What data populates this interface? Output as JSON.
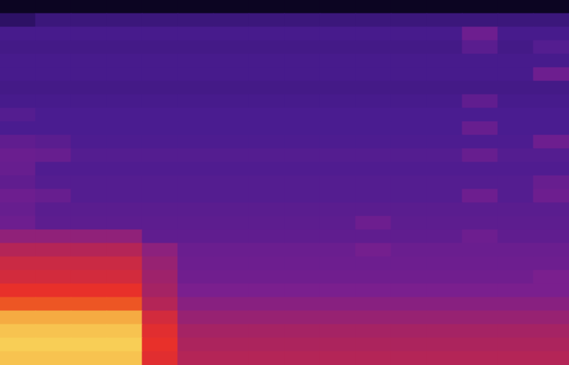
{
  "chart_data": {
    "type": "heatmap",
    "tick_labels": false,
    "grid": false,
    "xlim": [
      0,
      16
    ],
    "ylim": [
      0,
      27
    ],
    "zlim": [
      0,
      100
    ],
    "cells": [
      [
        8,
        8,
        8,
        8,
        8,
        8,
        8,
        8,
        8,
        8,
        8,
        8,
        8,
        8,
        8,
        8
      ],
      [
        25,
        30,
        30,
        30,
        30,
        30,
        30,
        30,
        30,
        30,
        30,
        30,
        30,
        30,
        30,
        30
      ],
      [
        34,
        34,
        34,
        34,
        34,
        34,
        34,
        34,
        34,
        34,
        34,
        34,
        34,
        46,
        34,
        34
      ],
      [
        33,
        33,
        33,
        33,
        33,
        33,
        33,
        33,
        33,
        33,
        33,
        33,
        33,
        40,
        33,
        38
      ],
      [
        34,
        34,
        34,
        34,
        34,
        34,
        34,
        34,
        34,
        34,
        34,
        34,
        34,
        34,
        34,
        34
      ],
      [
        34,
        34,
        34,
        34,
        34,
        34,
        34,
        34,
        34,
        34,
        34,
        34,
        34,
        34,
        34,
        46
      ],
      [
        33,
        33,
        33,
        33,
        33,
        33,
        33,
        33,
        33,
        33,
        33,
        33,
        33,
        33,
        33,
        33
      ],
      [
        34,
        34,
        34,
        34,
        34,
        34,
        34,
        34,
        34,
        34,
        34,
        34,
        34,
        42,
        34,
        34
      ],
      [
        38,
        35,
        35,
        35,
        35,
        35,
        35,
        35,
        35,
        35,
        35,
        35,
        35,
        35,
        35,
        35
      ],
      [
        35,
        35,
        35,
        35,
        35,
        35,
        35,
        35,
        35,
        35,
        35,
        35,
        35,
        44,
        35,
        35
      ],
      [
        42,
        40,
        36,
        36,
        36,
        36,
        36,
        36,
        36,
        36,
        36,
        36,
        36,
        36,
        36,
        46
      ],
      [
        45,
        44,
        38,
        38,
        38,
        38,
        38,
        38,
        38,
        38,
        38,
        38,
        38,
        44,
        38,
        38
      ],
      [
        44,
        37,
        37,
        37,
        37,
        37,
        37,
        37,
        37,
        37,
        37,
        37,
        37,
        37,
        37,
        37
      ],
      [
        42,
        38,
        38,
        38,
        38,
        38,
        38,
        38,
        38,
        38,
        38,
        38,
        38,
        38,
        38,
        44
      ],
      [
        46,
        44,
        38,
        38,
        38,
        38,
        38,
        38,
        38,
        38,
        38,
        38,
        38,
        46,
        38,
        46
      ],
      [
        44,
        40,
        40,
        40,
        40,
        40,
        40,
        40,
        40,
        40,
        40,
        40,
        40,
        40,
        40,
        40
      ],
      [
        46,
        41,
        41,
        41,
        41,
        41,
        41,
        41,
        41,
        41,
        46,
        41,
        41,
        41,
        41,
        41
      ],
      [
        56,
        56,
        56,
        56,
        42,
        42,
        42,
        42,
        42,
        42,
        42,
        42,
        42,
        46,
        42,
        42
      ],
      [
        66,
        66,
        66,
        66,
        55,
        45,
        45,
        45,
        45,
        45,
        48,
        45,
        45,
        45,
        45,
        45
      ],
      [
        72,
        72,
        72,
        72,
        58,
        46,
        46,
        46,
        46,
        46,
        46,
        46,
        46,
        46,
        46,
        46
      ],
      [
        74,
        74,
        74,
        74,
        60,
        47,
        47,
        47,
        47,
        47,
        47,
        47,
        47,
        47,
        47,
        50
      ],
      [
        80,
        80,
        80,
        80,
        62,
        50,
        50,
        50,
        50,
        50,
        50,
        50,
        50,
        50,
        50,
        50
      ],
      [
        86,
        86,
        86,
        86,
        66,
        54,
        54,
        54,
        54,
        54,
        54,
        54,
        54,
        54,
        54,
        54
      ],
      [
        95,
        95,
        95,
        95,
        74,
        58,
        58,
        58,
        58,
        58,
        58,
        58,
        58,
        58,
        58,
        58
      ],
      [
        97,
        97,
        97,
        97,
        78,
        62,
        62,
        62,
        62,
        62,
        62,
        62,
        62,
        62,
        62,
        62
      ],
      [
        98,
        98,
        98,
        98,
        80,
        64,
        64,
        64,
        64,
        64,
        64,
        64,
        64,
        64,
        64,
        64
      ],
      [
        97,
        97,
        97,
        97,
        78,
        66,
        66,
        66,
        66,
        66,
        66,
        66,
        66,
        66,
        66,
        66
      ]
    ]
  }
}
